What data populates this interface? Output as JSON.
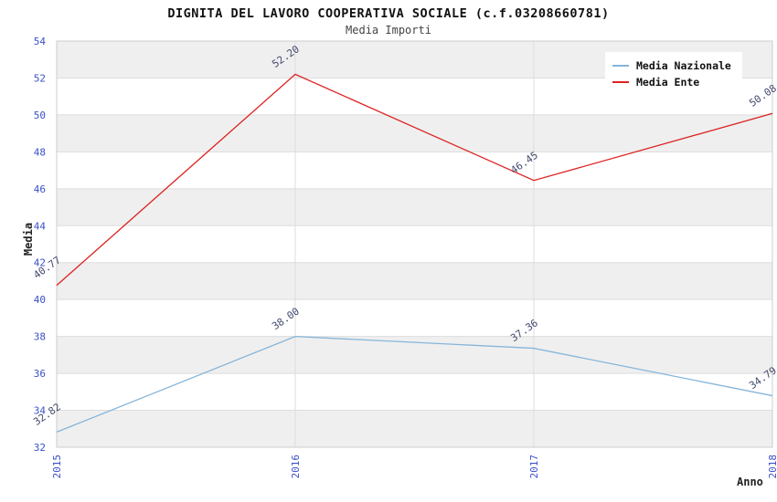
{
  "chart_data": {
    "type": "line",
    "title": "DIGNITA DEL LAVORO COOPERATIVA SOCIALE (c.f.03208660781)",
    "subtitle": "Media Importi",
    "xlabel": "Anno",
    "ylabel": "Media",
    "categories": [
      "2015",
      "2016",
      "2017",
      "2018"
    ],
    "series": [
      {
        "name": "Media Nazionale",
        "color": "#85b5da",
        "values": [
          32.82,
          38.0,
          37.36,
          34.79
        ],
        "labels": [
          "32.82",
          "38.00",
          "37.36",
          "34.79"
        ]
      },
      {
        "name": "Media Ente",
        "color": "#dd2222",
        "values": [
          40.77,
          52.2,
          46.45,
          50.08
        ],
        "labels": [
          "40.77",
          "52.20",
          "46.45",
          "50.08"
        ]
      }
    ],
    "ylim": [
      32,
      54
    ],
    "ytick_step": 2,
    "grid": true,
    "legend_position": "top-right",
    "colors": {
      "band": "#efefef",
      "band_alt": "#ffffff",
      "gridline": "#dddddd",
      "plot_border": "#cccccc",
      "axis_tick_label": "#3a50c8",
      "data_label": "#424a6e"
    }
  }
}
